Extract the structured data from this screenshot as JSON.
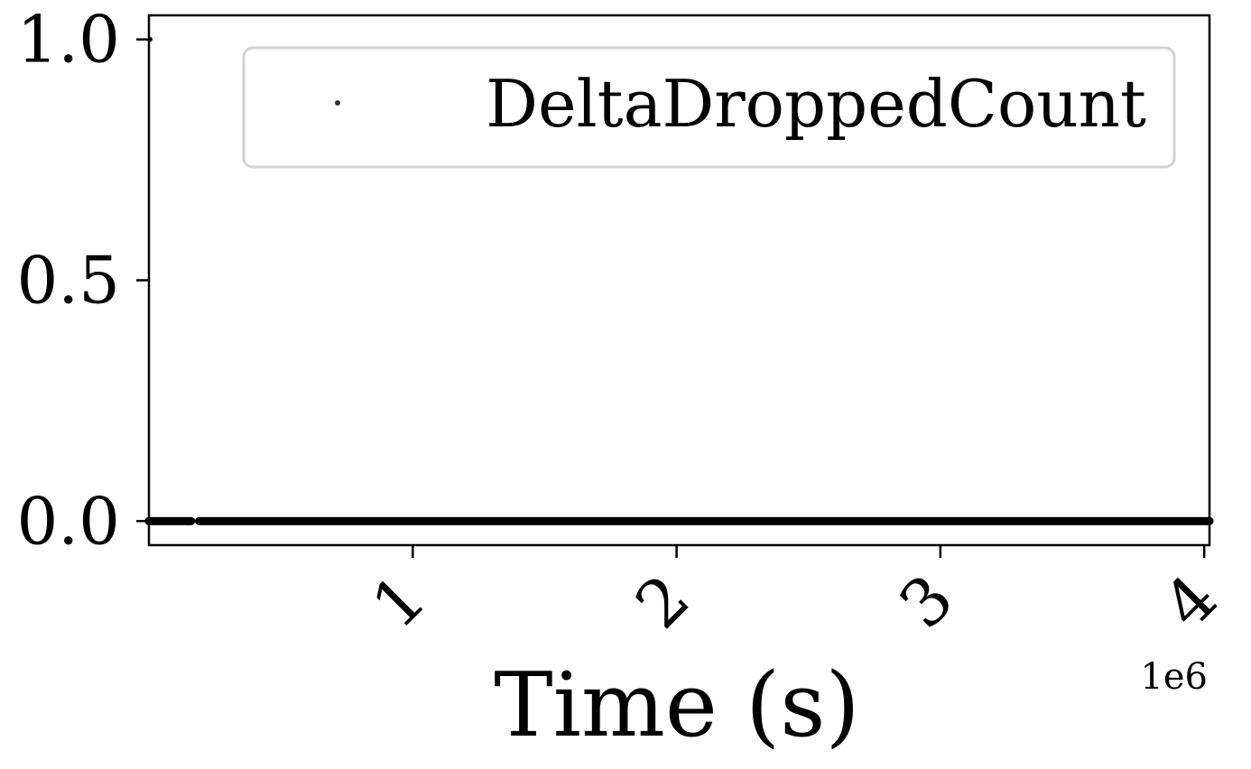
{
  "chart_data": {
    "type": "scatter",
    "xlabel": "Time (s)",
    "ylabel": "",
    "title": "",
    "x_offset_text": "1e6",
    "xlim": [
      0,
      4020000
    ],
    "ylim": [
      -0.05,
      1.05
    ],
    "x_ticks": [
      1000000,
      2000000,
      3000000,
      4000000
    ],
    "x_tick_labels": [
      "1",
      "2",
      "3",
      "4"
    ],
    "y_ticks": [
      0.0,
      0.5,
      1.0
    ],
    "y_tick_labels": [
      "0.0",
      "0.5",
      "1.0"
    ],
    "grid": false,
    "legend_position": "upper right",
    "series": [
      {
        "name": "DeltaDroppedCount",
        "color": "#000000",
        "marker": "point",
        "points": [
          {
            "x": 5000,
            "y": 1
          },
          {
            "x": 0,
            "y": 0
          },
          {
            "x": 150000,
            "y": 0
          },
          {
            "x": 190000,
            "y": 0
          },
          {
            "x": 4020000,
            "y": 0
          }
        ],
        "segments": [
          {
            "x_start": 0,
            "x_end": 160000,
            "y": 0
          },
          {
            "x_start": 190000,
            "y": 0,
            "x_end": 4020000
          }
        ]
      }
    ]
  }
}
